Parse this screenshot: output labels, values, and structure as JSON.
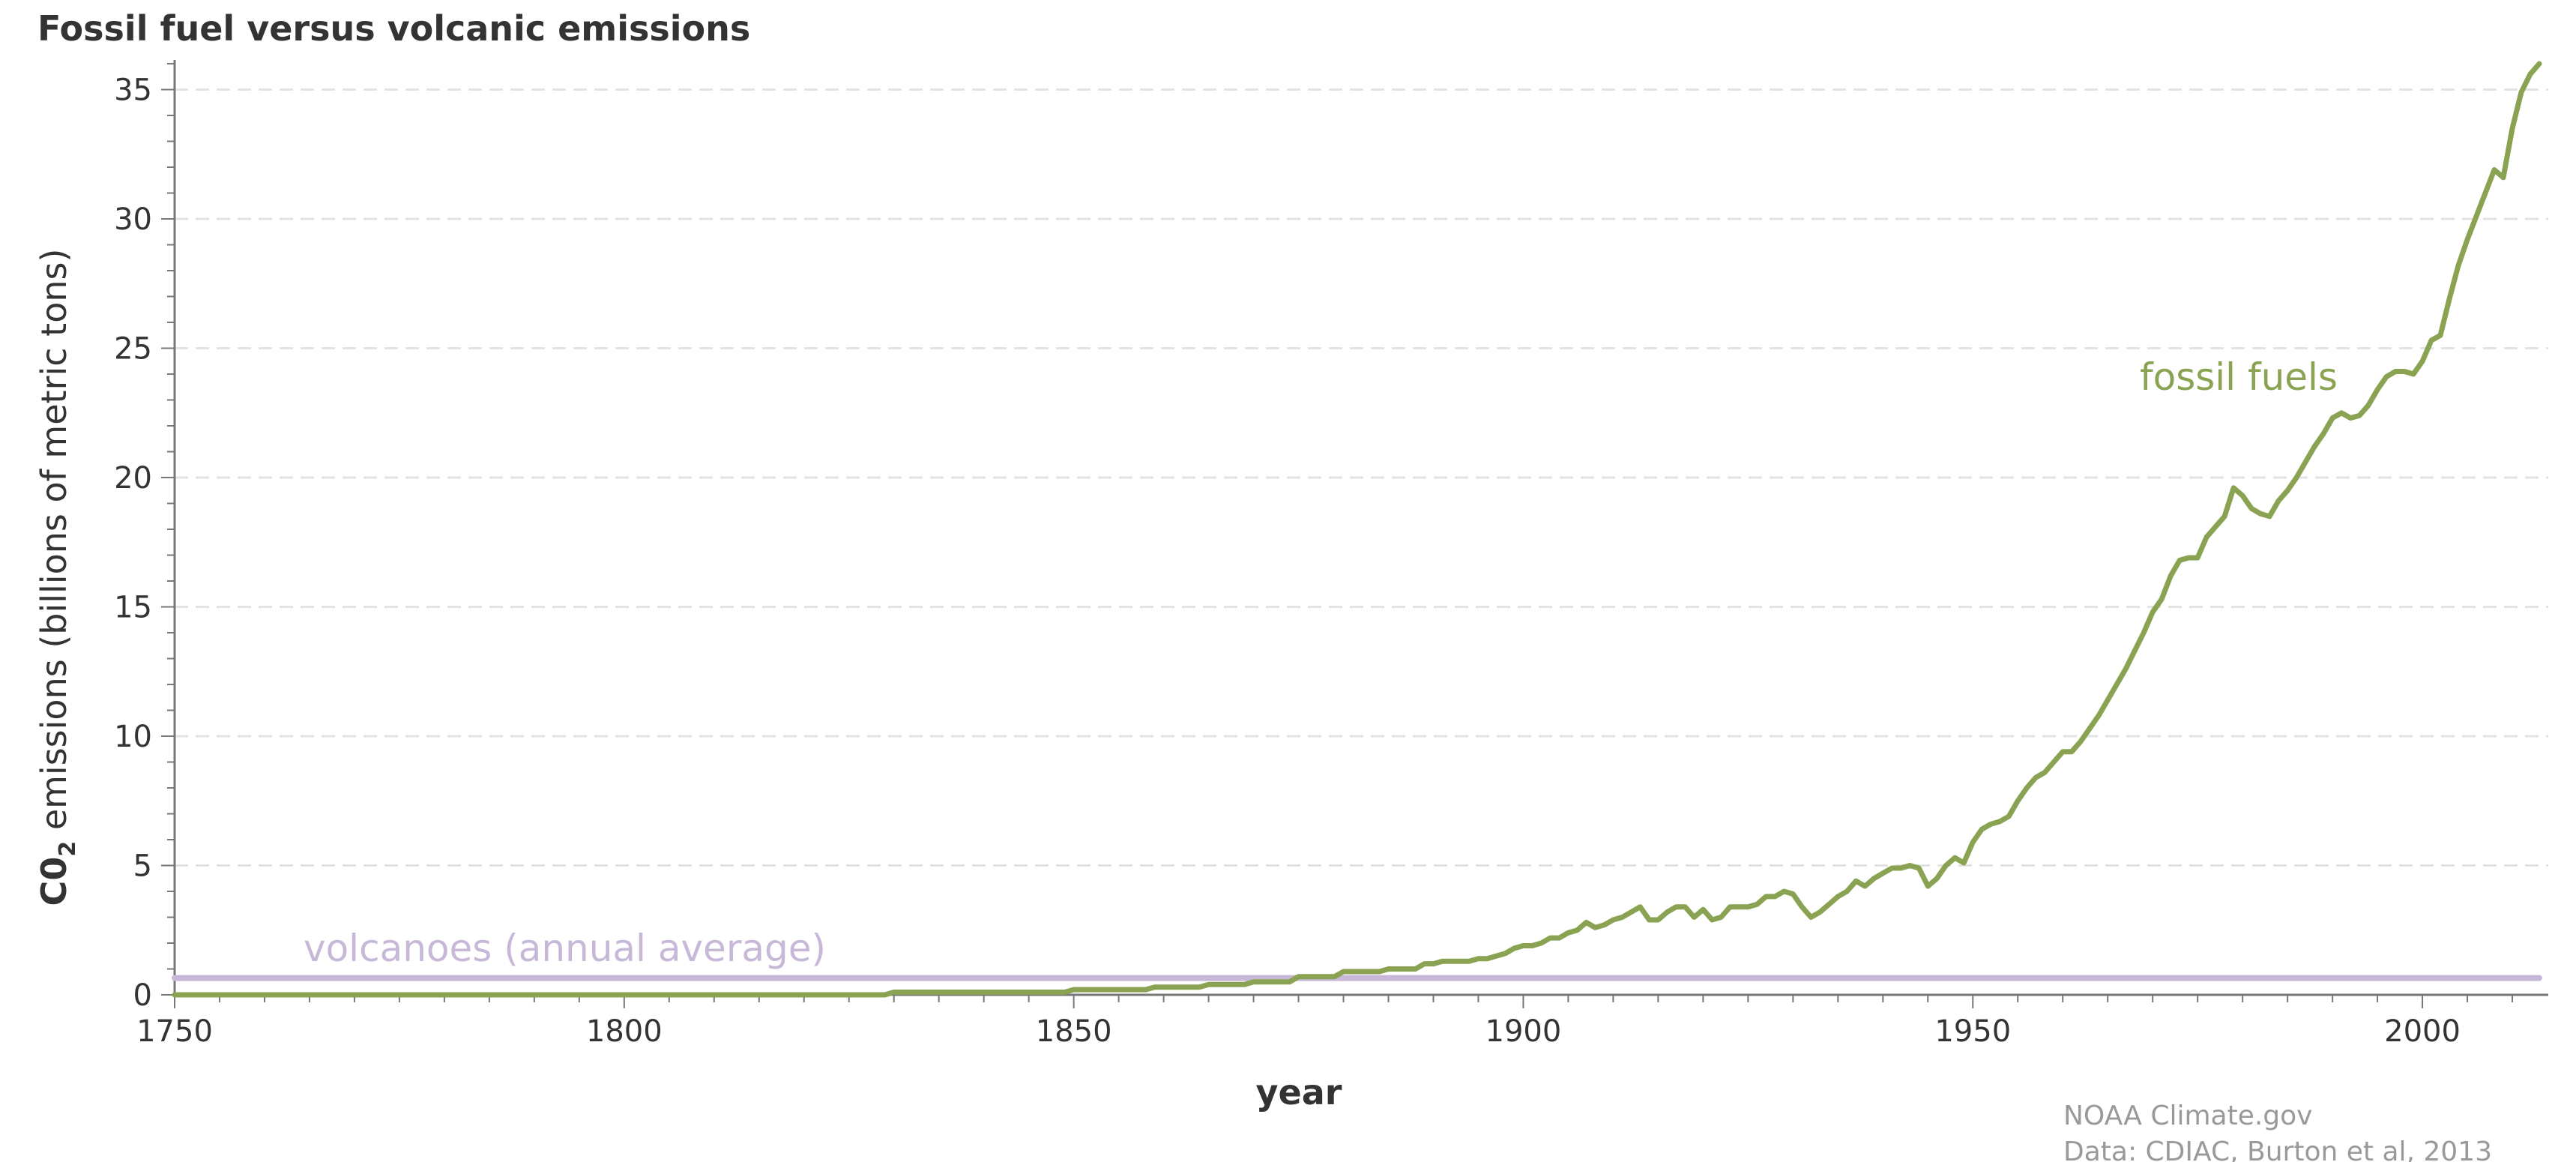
{
  "chart_data": {
    "type": "line",
    "title": "Fossil fuel versus volcanic emissions",
    "xlabel": "year",
    "ylabel": "C0 emissions (billions of metric tons)",
    "ylabel_main": "C0",
    "ylabel_sub": "2",
    "ylabel_rest": " emissions (billions of metric tons)",
    "xlim": [
      1750,
      2014
    ],
    "ylim": [
      0,
      36
    ],
    "x_ticks": [
      1750,
      1800,
      1850,
      1900,
      1950,
      2000
    ],
    "y_ticks": [
      0,
      5,
      10,
      15,
      20,
      25,
      30,
      35
    ],
    "grid": "horizontal dashed",
    "series": [
      {
        "name": "fossil fuels",
        "color": "#8aa352",
        "x": [
          1750,
          1800,
          1829,
          1830,
          1849,
          1850,
          1858,
          1859,
          1864,
          1865,
          1869,
          1870,
          1874,
          1875,
          1879,
          1880,
          1884,
          1885,
          1888,
          1889,
          1890,
          1891,
          1892,
          1893,
          1894,
          1895,
          1896,
          1897,
          1898,
          1899,
          1900,
          1901,
          1902,
          1903,
          1904,
          1905,
          1906,
          1907,
          1908,
          1909,
          1910,
          1911,
          1912,
          1913,
          1914,
          1915,
          1916,
          1917,
          1918,
          1919,
          1920,
          1921,
          1922,
          1923,
          1924,
          1925,
          1926,
          1927,
          1928,
          1929,
          1930,
          1931,
          1932,
          1933,
          1934,
          1935,
          1936,
          1937,
          1938,
          1939,
          1940,
          1941,
          1942,
          1943,
          1944,
          1945,
          1946,
          1947,
          1948,
          1949,
          1950,
          1951,
          1952,
          1953,
          1954,
          1955,
          1956,
          1957,
          1958,
          1959,
          1960,
          1961,
          1962,
          1963,
          1964,
          1965,
          1966,
          1967,
          1968,
          1969,
          1970,
          1971,
          1972,
          1973,
          1974,
          1975,
          1976,
          1977,
          1978,
          1979,
          1980,
          1981,
          1982,
          1983,
          1984,
          1985,
          1986,
          1987,
          1988,
          1989,
          1990,
          1991,
          1992,
          1993,
          1994,
          1995,
          1996,
          1997,
          1998,
          1999,
          2000,
          2001,
          2002,
          2003,
          2004,
          2005,
          2006,
          2007,
          2008,
          2009,
          2010,
          2011,
          2012,
          2013
        ],
        "values": [
          0,
          0,
          0,
          0.1,
          0.1,
          0.2,
          0.2,
          0.3,
          0.3,
          0.4,
          0.4,
          0.5,
          0.5,
          0.7,
          0.7,
          0.9,
          0.9,
          1.0,
          1.0,
          1.2,
          1.2,
          1.3,
          1.3,
          1.3,
          1.3,
          1.4,
          1.4,
          1.5,
          1.6,
          1.8,
          1.9,
          1.9,
          2.0,
          2.2,
          2.2,
          2.4,
          2.5,
          2.8,
          2.6,
          2.7,
          2.9,
          3.0,
          3.2,
          3.4,
          2.9,
          2.9,
          3.2,
          3.4,
          3.4,
          3.0,
          3.3,
          2.9,
          3.0,
          3.4,
          3.4,
          3.4,
          3.5,
          3.8,
          3.8,
          4.0,
          3.9,
          3.4,
          3.0,
          3.2,
          3.5,
          3.8,
          4.0,
          4.4,
          4.2,
          4.5,
          4.7,
          4.9,
          4.9,
          5.0,
          4.9,
          4.2,
          4.5,
          5.0,
          5.3,
          5.1,
          5.9,
          6.4,
          6.6,
          6.7,
          6.9,
          7.5,
          8.0,
          8.4,
          8.6,
          9.0,
          9.4,
          9.4,
          9.8,
          10.3,
          10.8,
          11.4,
          12.0,
          12.6,
          13.3,
          14.0,
          14.8,
          15.3,
          16.2,
          16.8,
          16.9,
          16.9,
          17.7,
          18.1,
          18.5,
          19.6,
          19.3,
          18.8,
          18.6,
          18.5,
          19.1,
          19.5,
          20.0,
          20.6,
          21.2,
          21.7,
          22.3,
          22.5,
          22.3,
          22.4,
          22.8,
          23.4,
          23.9,
          24.1,
          24.1,
          24.0,
          24.5,
          25.3,
          25.5,
          26.9,
          28.2,
          29.2,
          30.1,
          31.0,
          31.9,
          31.6,
          33.5,
          34.9,
          35.6,
          36.0
        ]
      },
      {
        "name": "volcanoes (annual average)",
        "color": "#c8b8d8",
        "x": [
          1750,
          2013
        ],
        "values": [
          0.65,
          0.65
        ]
      }
    ],
    "annotations": [
      "fossil fuels",
      "volcanoes (annual average)"
    ],
    "credits": [
      "NOAA Climate.gov",
      "Data: CDIAC, Burton et al, 2013"
    ]
  }
}
